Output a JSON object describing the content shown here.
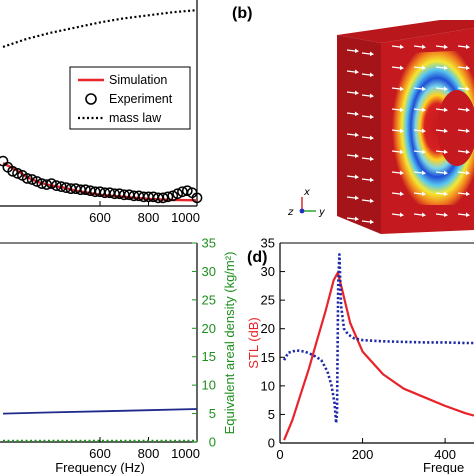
{
  "chart_data": [
    {
      "id": "a",
      "type": "line",
      "xlabel": "",
      "ylabel": "",
      "xlim": [
        200,
        1000
      ],
      "x_ticks": [
        "600",
        "800",
        "1000"
      ],
      "x_tick_values": [
        600,
        800,
        1000
      ],
      "legend": {
        "placement": "right",
        "entries": [
          "Simulation",
          "Experiment",
          "mass law"
        ]
      },
      "series": [
        {
          "name": "Simulation",
          "style": "solid",
          "color": "#e8242a",
          "x": [
            200,
            250,
            300,
            350,
            400,
            450,
            500,
            550,
            600,
            700,
            800,
            900,
            1000
          ],
          "y": [
            0.21,
            0.18,
            0.14,
            0.115,
            0.1,
            0.09,
            0.075,
            0.065,
            0.055,
            0.045,
            0.035,
            0.03,
            0.028
          ]
        },
        {
          "name": "Experiment",
          "style": "circles",
          "color": "#000000",
          "x": [
            200,
            220,
            240,
            260,
            280,
            300,
            320,
            340,
            360,
            380,
            400,
            420,
            440,
            460,
            480,
            500,
            520,
            540,
            560,
            580,
            600,
            620,
            640,
            660,
            680,
            700,
            720,
            740,
            760,
            780,
            800,
            820,
            840,
            860,
            880,
            900,
            920,
            940,
            960,
            980,
            1000
          ],
          "y": [
            0.22,
            0.19,
            0.17,
            0.16,
            0.15,
            0.135,
            0.13,
            0.12,
            0.11,
            0.105,
            0.11,
            0.1,
            0.095,
            0.09,
            0.085,
            0.085,
            0.08,
            0.08,
            0.075,
            0.07,
            0.07,
            0.065,
            0.065,
            0.06,
            0.06,
            0.055,
            0.055,
            0.05,
            0.05,
            0.045,
            0.045,
            0.045,
            0.04,
            0.04,
            0.045,
            0.05,
            0.06,
            0.07,
            0.075,
            0.065,
            0.04
          ]
        },
        {
          "name": "mass law",
          "style": "dotted",
          "color": "#000000",
          "x": [
            200,
            300,
            400,
            500,
            600,
            700,
            800,
            900,
            1000
          ],
          "y": [
            0.78,
            0.82,
            0.85,
            0.875,
            0.9,
            0.92,
            0.935,
            0.95,
            0.96
          ]
        }
      ]
    },
    {
      "id": "b",
      "type": "other",
      "description_free": true,
      "axis_triad": [
        "x",
        "y",
        "z"
      ]
    },
    {
      "id": "c",
      "type": "line",
      "xlabel": "Frequency (Hz)",
      "ylabel": "",
      "y2label": "Equivalent areal density (kg/m²)",
      "xlim": [
        200,
        1000
      ],
      "x_ticks": [
        "600",
        "800",
        "1000"
      ],
      "x_tick_values": [
        600,
        800,
        1000
      ],
      "y2lim": [
        0,
        35
      ],
      "y2_ticks": [
        "0",
        "5",
        "10",
        "15",
        "20",
        "25",
        "30",
        "35"
      ],
      "y2_tick_values": [
        0,
        5,
        10,
        15,
        20,
        25,
        30,
        35
      ],
      "series": [
        {
          "name": "",
          "style": "solid",
          "color": "#1f2a8c",
          "x": [
            200,
            400,
            600,
            800,
            1000
          ],
          "y2": [
            5.0,
            5.2,
            5.4,
            5.6,
            5.8
          ]
        },
        {
          "name": "",
          "style": "dotted",
          "color": "#1f8f1f",
          "x": [
            200,
            400,
            600,
            800,
            1000
          ],
          "y2": [
            0.2,
            0.2,
            0.2,
            0.2,
            0.2
          ]
        }
      ]
    },
    {
      "id": "d",
      "type": "line",
      "xlabel": "Freque",
      "ylabel": "STL (dB)",
      "xlim": [
        0,
        470
      ],
      "ylim": [
        0,
        35
      ],
      "x_ticks": [
        "0",
        "200",
        "400"
      ],
      "x_tick_values": [
        0,
        200,
        400
      ],
      "y_ticks": [
        "0",
        "5",
        "10",
        "15",
        "20",
        "25",
        "30",
        "35"
      ],
      "y_tick_values": [
        0,
        5,
        10,
        15,
        20,
        25,
        30,
        35
      ],
      "series": [
        {
          "name": "",
          "style": "solid",
          "color": "#e8242a",
          "x": [
            10,
            30,
            50,
            70,
            90,
            110,
            130,
            140,
            150,
            170,
            200,
            250,
            300,
            350,
            400,
            450,
            470
          ],
          "y": [
            0.5,
            4,
            8.5,
            13,
            18,
            23,
            28.5,
            29.8,
            27,
            21,
            16,
            12,
            9.5,
            8,
            6.5,
            5.2,
            4.8
          ]
        },
        {
          "name": "",
          "style": "dotted",
          "color": "#1f2aa8",
          "x": [
            10,
            20,
            40,
            60,
            80,
            100,
            115,
            125,
            132,
            136,
            138,
            141,
            144,
            148,
            155,
            165,
            180,
            200,
            250,
            300,
            350,
            400,
            450,
            470
          ],
          "y": [
            14.5,
            15.8,
            16.2,
            16,
            15.4,
            14.5,
            12.5,
            10,
            7,
            3.5,
            5,
            28,
            33,
            24,
            20,
            19,
            18.3,
            18,
            17.8,
            17.7,
            17.6,
            17.6,
            17.5,
            17.5
          ]
        }
      ]
    }
  ],
  "labels": {
    "panel_b": "(b)",
    "panel_d": "(d)"
  },
  "colors": {
    "red": "#e8242a",
    "navy": "#1f2a8c",
    "green": "#1f8f1f",
    "blue_dotted": "#1f2aa8",
    "model_red": "#b3161b"
  }
}
